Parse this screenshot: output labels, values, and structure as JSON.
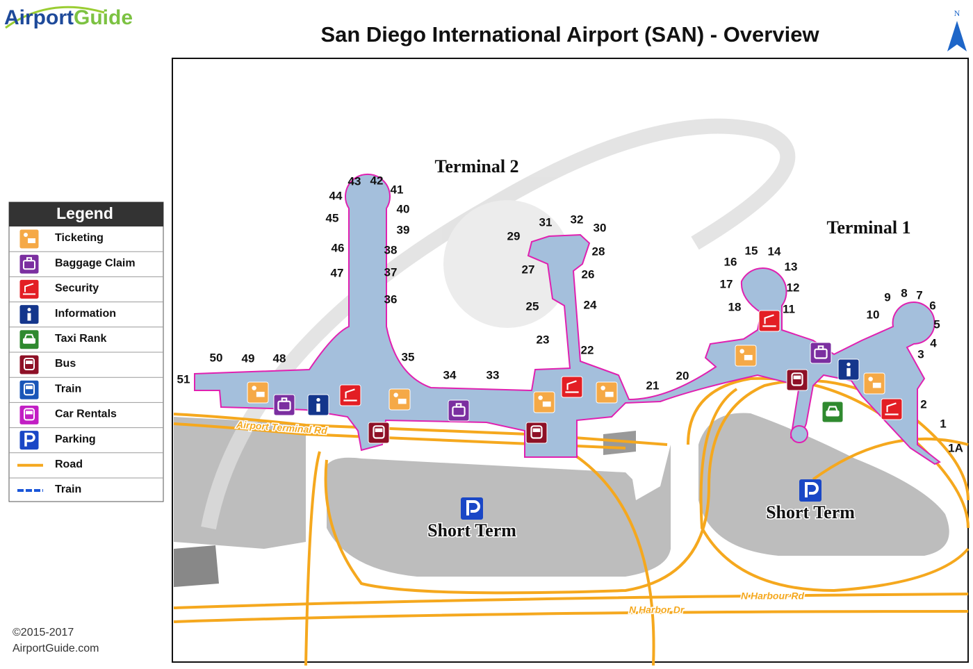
{
  "header": {
    "logo": [
      "Airport",
      "Guide"
    ],
    "title": "San Diego International Airport (SAN) - Overview",
    "north": "N"
  },
  "legend": {
    "title": "Legend",
    "items": [
      "Ticketing",
      "Baggage Claim",
      "Security",
      "Information",
      "Taxi Rank",
      "Bus",
      "Train",
      "Car Rentals",
      "Parking",
      "Road",
      "Train"
    ]
  },
  "map": {
    "terminals": [
      "Terminal 2",
      "Terminal 1"
    ],
    "gates": [
      "43",
      "42",
      "41",
      "44",
      "40",
      "45",
      "39",
      "46",
      "38",
      "47",
      "37",
      "36",
      "35",
      "34",
      "33",
      "50",
      "49",
      "48",
      "51",
      "31",
      "32",
      "30",
      "29",
      "28",
      "27",
      "26",
      "25",
      "24",
      "23",
      "22",
      "21",
      "20",
      "16",
      "15",
      "14",
      "13",
      "17",
      "12",
      "18",
      "11",
      "9",
      "8",
      "7",
      "6",
      "10",
      "5",
      "4",
      "3",
      "2",
      "1",
      "1A"
    ],
    "roads": [
      "Airport Terminal Rd",
      "N Harbour Rd",
      "N Harbor Dr"
    ],
    "parking": [
      "Short Term",
      "Short Term"
    ]
  },
  "footer": {
    "copyright": "©2015-2017",
    "site": "AirportGuide.com"
  }
}
